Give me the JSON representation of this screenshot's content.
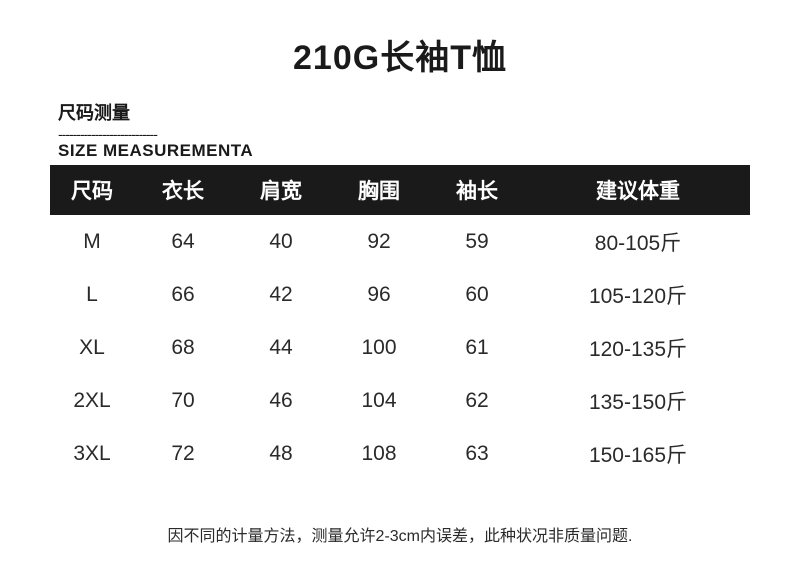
{
  "title": "210G长袖T恤",
  "subtitle_cn": "尺码测量",
  "subtitle_dashes": "---------------------------",
  "subtitle_en": "SIZE MEASUREMENTA",
  "headers": {
    "size": "尺码",
    "length": "衣长",
    "shoulder": "肩宽",
    "chest": "胸围",
    "sleeve": "袖长",
    "weight": "建议体重"
  },
  "rows": [
    {
      "size": "M",
      "length": "64",
      "shoulder": "40",
      "chest": "92",
      "sleeve": "59",
      "weight": "80-105斤"
    },
    {
      "size": "L",
      "length": "66",
      "shoulder": "42",
      "chest": "96",
      "sleeve": "60",
      "weight": "105-120斤"
    },
    {
      "size": "XL",
      "length": "68",
      "shoulder": "44",
      "chest": "100",
      "sleeve": "61",
      "weight": "120-135斤"
    },
    {
      "size": "2XL",
      "length": "70",
      "shoulder": "46",
      "chest": "104",
      "sleeve": "62",
      "weight": "135-150斤"
    },
    {
      "size": "3XL",
      "length": "72",
      "shoulder": "48",
      "chest": "108",
      "sleeve": "63",
      "weight": "150-165斤"
    }
  ],
  "footnote": "因不同的计量方法，测量允许2-3cm内误差，此种状况非质量问题."
}
